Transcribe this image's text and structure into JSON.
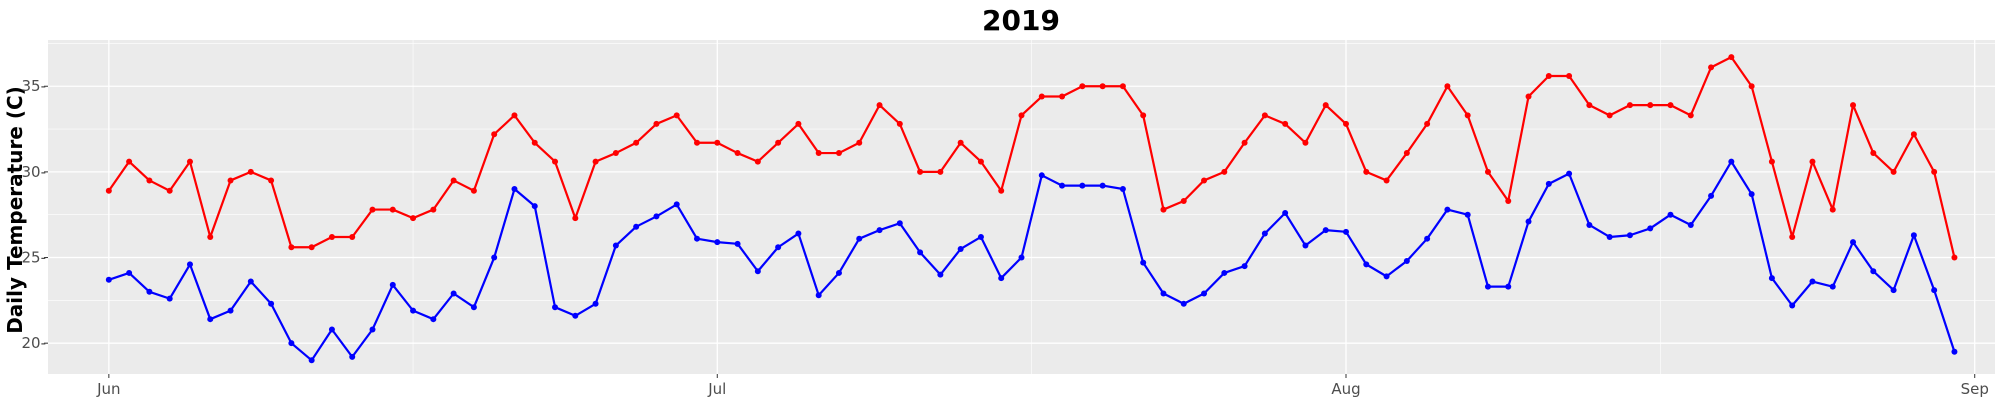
{
  "chart_data": {
    "type": "line",
    "title": "2019",
    "xlabel": "",
    "ylabel": "Daily Temperature (C)",
    "x_start": "2019-06-01",
    "x_end": "2019-08-31",
    "xlim": [
      "2019-05-29",
      "2019-09-02"
    ],
    "ylim": [
      18.2,
      37.7
    ],
    "x_ticks": [
      {
        "label": "Jun",
        "date": "2019-06-01"
      },
      {
        "label": "Jul",
        "date": "2019-07-01"
      },
      {
        "label": "Aug",
        "date": "2019-08-01"
      },
      {
        "label": "Sep",
        "date": "2019-09-01"
      }
    ],
    "y_ticks": [
      20,
      25,
      30,
      35
    ],
    "y_tick_labels": [
      "20-",
      "25-",
      "30-",
      "35-"
    ],
    "grid": true,
    "legend": "none",
    "series": [
      {
        "color": "#ff0000",
        "values": [
          28.9,
          30.6,
          29.5,
          28.9,
          30.6,
          26.2,
          29.5,
          30.0,
          29.5,
          25.6,
          25.6,
          26.2,
          26.2,
          27.8,
          27.8,
          27.3,
          27.8,
          29.5,
          28.9,
          32.2,
          33.3,
          31.7,
          30.6,
          27.3,
          30.6,
          31.1,
          31.7,
          32.8,
          33.3,
          31.7,
          31.7,
          31.1,
          30.6,
          31.7,
          32.8,
          31.1,
          31.1,
          31.7,
          33.9,
          32.8,
          30.0,
          30.0,
          31.7,
          30.6,
          28.9,
          33.3,
          34.4,
          34.4,
          35.0,
          35.0,
          35.0,
          33.3,
          27.8,
          28.3,
          29.5,
          30.0,
          31.7,
          33.3,
          32.8,
          31.7,
          33.9,
          32.8,
          30.0,
          29.5,
          31.1,
          32.8,
          35.0,
          33.3,
          30.0,
          28.3,
          34.4,
          35.6,
          35.6,
          33.9,
          33.3,
          33.9,
          33.9,
          33.9,
          33.3,
          36.1,
          36.7,
          35.0,
          30.6,
          26.2,
          30.6,
          27.8,
          33.9,
          31.1,
          30.0,
          32.2,
          30.0,
          25.0
        ]
      },
      {
        "color": "#0000ff",
        "values": [
          23.7,
          24.1,
          23.0,
          22.6,
          24.6,
          21.4,
          21.9,
          23.6,
          22.3,
          20.0,
          19.0,
          20.8,
          19.2,
          20.8,
          23.4,
          21.9,
          21.4,
          22.9,
          22.1,
          25.0,
          29.0,
          28.0,
          22.1,
          21.6,
          22.3,
          25.7,
          26.8,
          27.4,
          28.1,
          26.1,
          25.9,
          25.8,
          24.2,
          25.6,
          26.4,
          22.8,
          24.1,
          26.1,
          26.6,
          27.0,
          25.3,
          24.0,
          25.5,
          26.2,
          23.8,
          25.0,
          29.8,
          29.2,
          29.2,
          29.2,
          29.0,
          24.7,
          22.9,
          22.3,
          22.9,
          24.1,
          24.5,
          26.4,
          27.6,
          25.7,
          26.6,
          26.5,
          24.6,
          23.9,
          24.8,
          26.1,
          27.8,
          27.5,
          23.3,
          23.3,
          27.1,
          29.3,
          29.9,
          26.9,
          26.2,
          26.3,
          26.7,
          27.5,
          26.9,
          28.6,
          30.6,
          28.7,
          23.8,
          22.2,
          23.6,
          23.3,
          25.9,
          24.2,
          23.1,
          26.3,
          23.1,
          19.5
        ]
      }
    ]
  }
}
